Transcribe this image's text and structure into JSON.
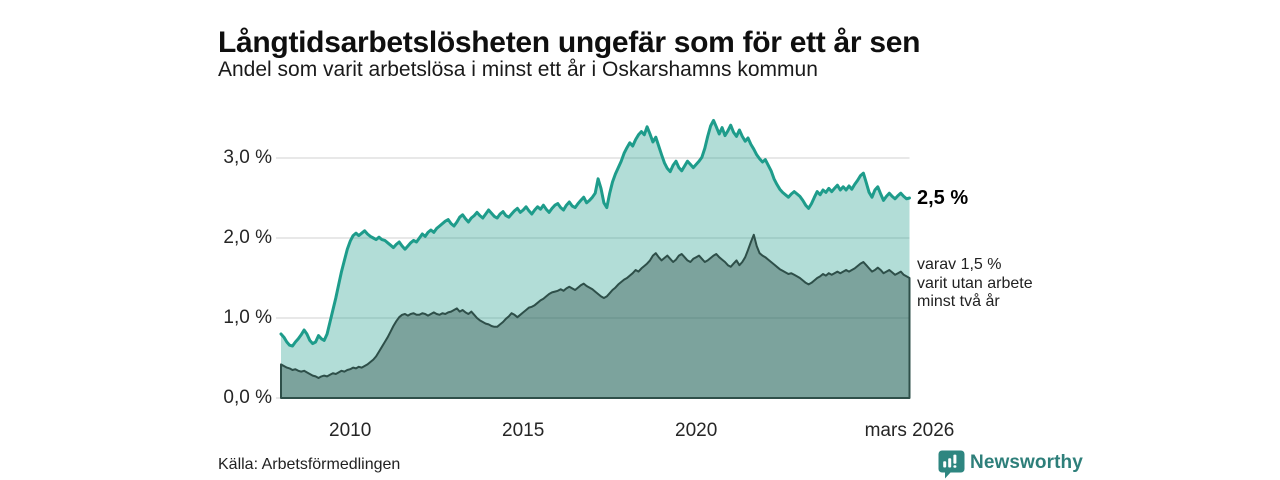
{
  "header": {
    "title": "Långtidsarbetslösheten ungefär som för ett år sen",
    "subtitle": "Andel som varit arbetslösa i minst ett år i Oskarshamns kommun"
  },
  "annotations": {
    "value_label": "2,5 %",
    "detail_line1": "varav 1,5 %",
    "detail_line2": "varit utan arbete",
    "detail_line3": "minst två år"
  },
  "footer": {
    "source": "Källa: Arbetsförmedlingen",
    "logo_text": "Newsworthy"
  },
  "colors": {
    "outer_line": "#1e9c8b",
    "outer_fill": "rgba(30,156,139,0.34)",
    "inner_line": "#2e4f49",
    "inner_fill": "rgba(43,77,70,0.40)",
    "grid": "#d9d9d9",
    "logo_teal": "#2e8680",
    "logo_text_color": "#2e7f7a"
  },
  "chart_data": {
    "type": "area",
    "title": "Långtidsarbetslösheten ungefär som för ett år sen",
    "subtitle": "Andel som varit arbetslösa i minst ett år i Oskarshamns kommun",
    "unit": "%",
    "grid": true,
    "x_start": 2008.0,
    "x_step": 0.083333,
    "xlim": [
      2008.0,
      2026.1667
    ],
    "ylim": [
      0,
      3.6
    ],
    "yticks": [
      {
        "value": 0,
        "label": "0,0 %"
      },
      {
        "value": 1,
        "label": "1,0 %"
      },
      {
        "value": 2,
        "label": "2,0 %"
      },
      {
        "value": 3,
        "label": "3,0 %"
      }
    ],
    "xticks": [
      {
        "value": 2010,
        "label": "2010"
      },
      {
        "value": 2015,
        "label": "2015"
      },
      {
        "value": 2020,
        "label": "2020"
      },
      {
        "value": 2026.1667,
        "label": "mars 2026"
      }
    ],
    "series": [
      {
        "name": "arbetslösa minst ett år",
        "end_label": "2,5 %",
        "values": [
          0.8,
          0.76,
          0.7,
          0.66,
          0.65,
          0.7,
          0.74,
          0.79,
          0.85,
          0.8,
          0.72,
          0.68,
          0.7,
          0.78,
          0.74,
          0.72,
          0.8,
          0.95,
          1.1,
          1.25,
          1.42,
          1.58,
          1.72,
          1.86,
          1.96,
          2.03,
          2.06,
          2.03,
          2.06,
          2.09,
          2.05,
          2.02,
          2.0,
          1.98,
          2.01,
          1.98,
          1.97,
          1.94,
          1.91,
          1.88,
          1.92,
          1.95,
          1.9,
          1.86,
          1.9,
          1.94,
          1.97,
          1.95,
          2.0,
          2.05,
          2.02,
          2.07,
          2.1,
          2.07,
          2.12,
          2.15,
          2.18,
          2.21,
          2.23,
          2.18,
          2.15,
          2.2,
          2.26,
          2.29,
          2.24,
          2.2,
          2.25,
          2.28,
          2.32,
          2.28,
          2.25,
          2.3,
          2.35,
          2.31,
          2.27,
          2.25,
          2.3,
          2.33,
          2.28,
          2.26,
          2.3,
          2.34,
          2.37,
          2.32,
          2.35,
          2.39,
          2.34,
          2.3,
          2.35,
          2.39,
          2.36,
          2.41,
          2.36,
          2.32,
          2.37,
          2.41,
          2.43,
          2.38,
          2.35,
          2.41,
          2.45,
          2.4,
          2.38,
          2.43,
          2.47,
          2.51,
          2.44,
          2.47,
          2.51,
          2.56,
          2.74,
          2.62,
          2.44,
          2.38,
          2.56,
          2.7,
          2.8,
          2.88,
          2.96,
          3.06,
          3.13,
          3.19,
          3.15,
          3.23,
          3.29,
          3.33,
          3.29,
          3.39,
          3.3,
          3.2,
          3.26,
          3.15,
          3.04,
          2.94,
          2.87,
          2.83,
          2.91,
          2.96,
          2.88,
          2.84,
          2.9,
          2.96,
          2.92,
          2.88,
          2.92,
          2.96,
          3.01,
          3.12,
          3.27,
          3.4,
          3.47,
          3.39,
          3.3,
          3.38,
          3.28,
          3.34,
          3.41,
          3.32,
          3.27,
          3.35,
          3.27,
          3.21,
          3.25,
          3.17,
          3.11,
          3.04,
          2.99,
          2.95,
          2.98,
          2.91,
          2.84,
          2.74,
          2.67,
          2.61,
          2.57,
          2.54,
          2.51,
          2.55,
          2.58,
          2.55,
          2.52,
          2.47,
          2.41,
          2.37,
          2.43,
          2.51,
          2.58,
          2.54,
          2.6,
          2.57,
          2.62,
          2.58,
          2.62,
          2.66,
          2.6,
          2.64,
          2.6,
          2.65,
          2.61,
          2.67,
          2.72,
          2.78,
          2.81,
          2.69,
          2.57,
          2.51,
          2.6,
          2.64,
          2.55,
          2.47,
          2.52,
          2.56,
          2.52,
          2.49,
          2.53,
          2.56,
          2.52,
          2.49,
          2.5
        ]
      },
      {
        "name": "varav utan arbete minst två år",
        "end_label": "1,5 %",
        "values": [
          0.42,
          0.4,
          0.38,
          0.37,
          0.35,
          0.36,
          0.34,
          0.33,
          0.34,
          0.32,
          0.3,
          0.28,
          0.27,
          0.25,
          0.27,
          0.28,
          0.27,
          0.29,
          0.31,
          0.3,
          0.32,
          0.34,
          0.33,
          0.35,
          0.36,
          0.38,
          0.37,
          0.39,
          0.38,
          0.4,
          0.42,
          0.45,
          0.48,
          0.52,
          0.58,
          0.64,
          0.7,
          0.76,
          0.83,
          0.9,
          0.96,
          1.01,
          1.04,
          1.05,
          1.03,
          1.05,
          1.06,
          1.04,
          1.04,
          1.06,
          1.05,
          1.03,
          1.05,
          1.07,
          1.05,
          1.04,
          1.06,
          1.05,
          1.07,
          1.08,
          1.1,
          1.12,
          1.08,
          1.1,
          1.07,
          1.05,
          1.08,
          1.04,
          1.0,
          0.97,
          0.95,
          0.93,
          0.92,
          0.9,
          0.89,
          0.89,
          0.92,
          0.95,
          0.99,
          1.02,
          1.06,
          1.04,
          1.01,
          1.04,
          1.07,
          1.1,
          1.13,
          1.14,
          1.16,
          1.19,
          1.22,
          1.24,
          1.27,
          1.3,
          1.32,
          1.33,
          1.34,
          1.36,
          1.34,
          1.37,
          1.39,
          1.37,
          1.35,
          1.38,
          1.41,
          1.43,
          1.4,
          1.38,
          1.36,
          1.33,
          1.3,
          1.27,
          1.25,
          1.27,
          1.31,
          1.35,
          1.38,
          1.42,
          1.45,
          1.48,
          1.5,
          1.53,
          1.56,
          1.6,
          1.58,
          1.62,
          1.65,
          1.68,
          1.72,
          1.78,
          1.81,
          1.76,
          1.72,
          1.75,
          1.78,
          1.74,
          1.7,
          1.73,
          1.78,
          1.8,
          1.76,
          1.72,
          1.7,
          1.74,
          1.76,
          1.78,
          1.74,
          1.7,
          1.72,
          1.75,
          1.78,
          1.8,
          1.76,
          1.73,
          1.7,
          1.66,
          1.64,
          1.68,
          1.72,
          1.66,
          1.7,
          1.76,
          1.85,
          1.95,
          2.04,
          1.9,
          1.81,
          1.78,
          1.76,
          1.73,
          1.7,
          1.67,
          1.64,
          1.61,
          1.59,
          1.57,
          1.55,
          1.56,
          1.54,
          1.52,
          1.5,
          1.47,
          1.44,
          1.42,
          1.44,
          1.47,
          1.5,
          1.52,
          1.55,
          1.53,
          1.56,
          1.54,
          1.56,
          1.58,
          1.56,
          1.58,
          1.6,
          1.58,
          1.6,
          1.62,
          1.65,
          1.68,
          1.7,
          1.66,
          1.62,
          1.58,
          1.6,
          1.63,
          1.6,
          1.56,
          1.58,
          1.6,
          1.57,
          1.54,
          1.56,
          1.58,
          1.54,
          1.52,
          1.5
        ]
      }
    ]
  }
}
